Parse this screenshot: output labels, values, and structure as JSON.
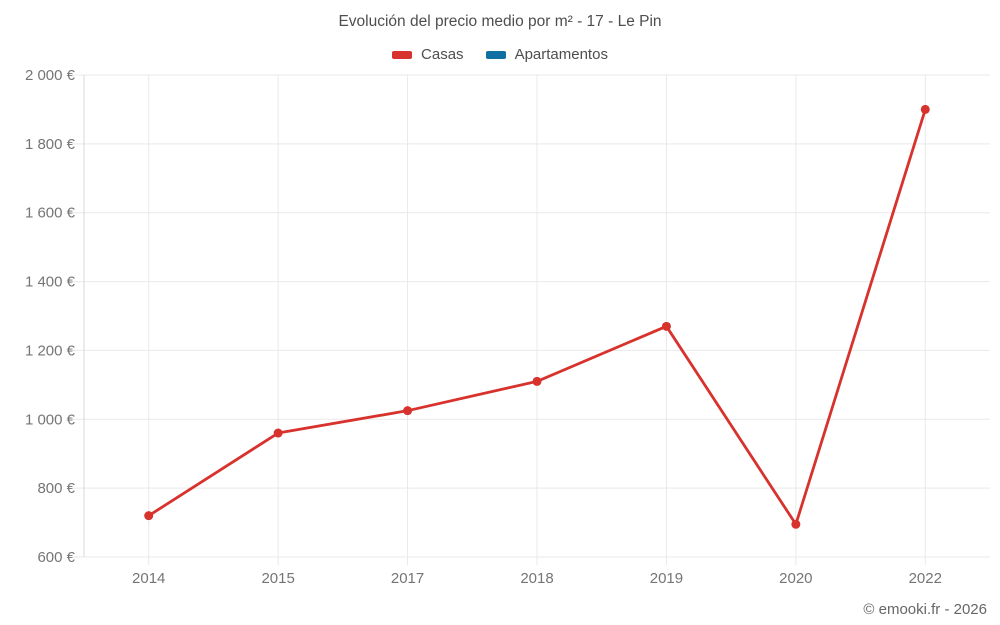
{
  "header": {
    "title": "Evolución del precio medio por m² - 17 - Le Pin"
  },
  "legend": {
    "items": [
      {
        "label": "Casas",
        "color": "#d8322d"
      },
      {
        "label": "Apartamentos",
        "color": "#1170a3"
      }
    ]
  },
  "footer": {
    "credit": "© emooki.fr - 2026"
  },
  "chart_data": {
    "type": "line",
    "title": "Evolución del precio medio por m² - 17 - Le Pin",
    "categories": [
      "2014",
      "2015",
      "2017",
      "2018",
      "2019",
      "2020",
      "2022"
    ],
    "series": [
      {
        "name": "Casas",
        "color": "#d8322d",
        "values": [
          720,
          960,
          1025,
          1110,
          1270,
          695,
          1900
        ]
      },
      {
        "name": "Apartamentos",
        "color": "#1170a3",
        "values": []
      }
    ],
    "ylim": [
      600,
      2000
    ],
    "ytick_step": 200,
    "ytick_labels": [
      "600 €",
      "800 €",
      "1 000 €",
      "1 200 €",
      "1 400 €",
      "1 600 €",
      "1 800 €",
      "2 000 €"
    ],
    "xlabel": "",
    "ylabel": "",
    "grid": true,
    "legend_position": "top",
    "colors": {
      "grid": "#e9e9e9",
      "axis": "#d9d9d9",
      "tick_label": "#757575"
    }
  }
}
